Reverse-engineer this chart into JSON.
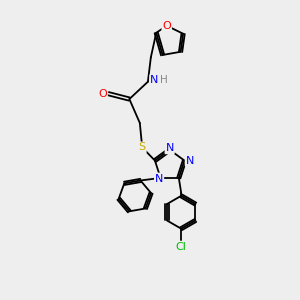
{
  "background_color": "#eeeeee",
  "bond_color": "#000000",
  "atom_colors": {
    "O": "#ff0000",
    "N": "#0000ff",
    "S": "#ccaa00",
    "Cl": "#00bb00",
    "C": "#000000",
    "H": "#888888"
  },
  "font_size": 7.5,
  "lw": 1.3,
  "sep": 0.055
}
